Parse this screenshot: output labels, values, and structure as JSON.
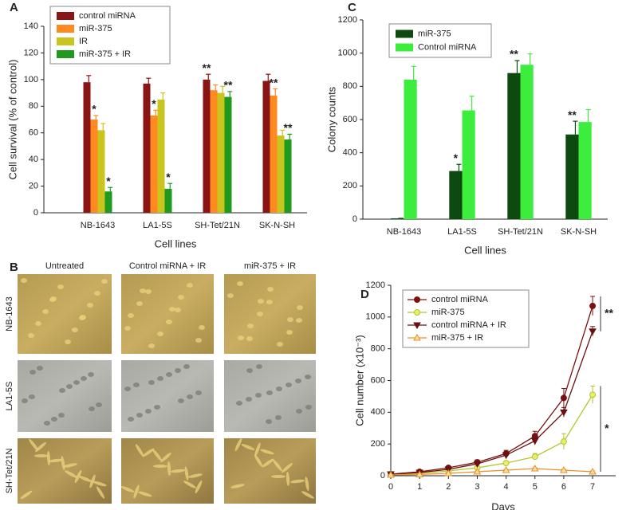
{
  "chart_data": [
    {
      "type": "bar",
      "label": "A",
      "y_label": "Cell survival (% of control)",
      "x_label": "Cell lines",
      "categories": [
        "NB-1643",
        "LA1-5S",
        "SH-Tet/21N",
        "SK-N-SH"
      ],
      "ylim": [
        0,
        140
      ],
      "yticks": [
        0,
        20,
        40,
        60,
        80,
        100,
        120,
        140
      ],
      "series": [
        {
          "name": "control miRNA",
          "color": "#8b1414",
          "values": [
            98,
            97,
            100,
            99
          ],
          "errors": [
            5,
            4,
            4,
            5
          ],
          "sig": [
            null,
            null,
            "**",
            null
          ]
        },
        {
          "name": "miR-375",
          "color": "#ff8a1f",
          "values": [
            70,
            73,
            92,
            88
          ],
          "errors": [
            3,
            4,
            4,
            5
          ],
          "sig": [
            "*",
            "*",
            null,
            "**"
          ]
        },
        {
          "name": "IR",
          "color": "#c8c61e",
          "values": [
            62,
            85,
            90,
            58
          ],
          "errors": [
            5,
            5,
            5,
            4
          ],
          "sig": [
            null,
            null,
            null,
            null
          ]
        },
        {
          "name": "miR-375 + IR",
          "color": "#1f9a1f",
          "values": [
            16,
            18,
            87,
            55
          ],
          "errors": [
            3,
            4,
            4,
            4
          ],
          "sig": [
            "*",
            "*",
            "**",
            "**"
          ]
        }
      ]
    },
    {
      "type": "bar",
      "label": "C",
      "y_label": "Colony counts",
      "x_label": "Cell lines",
      "categories": [
        "NB-1643",
        "LA1-5S",
        "SH-Tet/21N",
        "SK-N-SH"
      ],
      "ylim": [
        0,
        1200
      ],
      "yticks": [
        0,
        200,
        400,
        600,
        800,
        1000,
        1200
      ],
      "series": [
        {
          "name": "miR-375",
          "color": "#0d4a10",
          "values": [
            5,
            290,
            880,
            510
          ],
          "errors": [
            0,
            40,
            75,
            80
          ],
          "sig": [
            null,
            "*",
            "**",
            "**"
          ]
        },
        {
          "name": "Control miRNA",
          "color": "#3ded3d",
          "values": [
            840,
            655,
            930,
            585
          ],
          "errors": [
            80,
            85,
            65,
            75
          ],
          "sig": [
            null,
            null,
            null,
            null
          ]
        }
      ]
    },
    {
      "type": "line",
      "label": "D",
      "y_label": "Cell number (x10⁻³)",
      "x_label": "Days",
      "x": [
        0,
        1,
        2,
        3,
        4,
        5,
        6,
        7
      ],
      "xlim": [
        0,
        7.8
      ],
      "xticks": [
        0,
        1,
        2,
        3,
        4,
        5,
        6,
        7
      ],
      "ylim": [
        0,
        1200
      ],
      "yticks": [
        0,
        200,
        400,
        600,
        800,
        1000,
        1200
      ],
      "annotations": [
        "**",
        "*"
      ],
      "series": [
        {
          "name": "control miRNA",
          "color": "#7a1010",
          "marker": "circle",
          "marker_fill": "#7a1010",
          "values": [
            10,
            25,
            50,
            85,
            140,
            250,
            490,
            1070
          ],
          "errors": [
            2,
            5,
            10,
            15,
            20,
            30,
            60,
            60
          ]
        },
        {
          "name": "miR-375",
          "color": "#b5c42a",
          "marker": "circle",
          "marker_fill": "#e6ef6a",
          "values": [
            10,
            15,
            30,
            50,
            80,
            120,
            215,
            510
          ],
          "errors": [
            2,
            3,
            5,
            8,
            10,
            20,
            50,
            55
          ]
        },
        {
          "name": "control miRNA + IR",
          "color": "#6a1010",
          "marker": "triangle-down",
          "marker_fill": "#6a1010",
          "values": [
            10,
            20,
            40,
            75,
            130,
            220,
            400,
            910
          ],
          "errors": [
            2,
            5,
            8,
            12,
            20,
            25,
            30,
            30
          ]
        },
        {
          "name": "miR-375 + IR",
          "color": "#e8902a",
          "marker": "triangle-up",
          "marker_fill": "#fbe0a0",
          "values": [
            5,
            8,
            15,
            25,
            35,
            45,
            35,
            25
          ],
          "errors": [
            1,
            2,
            3,
            4,
            5,
            5,
            5,
            5
          ]
        }
      ]
    }
  ],
  "panel_b": {
    "label": "B",
    "columns": [
      "Untreated",
      "Control  miRNA + IR",
      "miR-375 + IR"
    ],
    "rows": [
      "NB-1643",
      "LA1-5S",
      "SH-Tet/21N"
    ]
  }
}
